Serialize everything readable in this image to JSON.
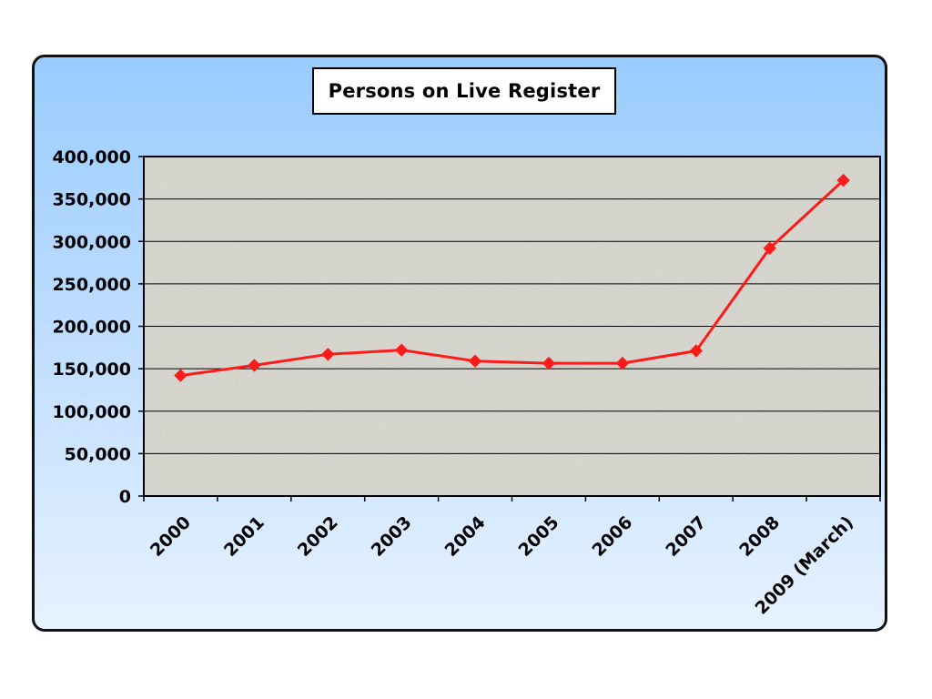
{
  "chart_data": {
    "type": "line",
    "title": "Persons on Live Register",
    "xlabel": "",
    "ylabel": "",
    "categories": [
      "2000",
      "2001",
      "2002",
      "2003",
      "2004",
      "2005",
      "2006",
      "2007",
      "2008",
      "2009 (March)"
    ],
    "series": [
      {
        "values": [
          142000,
          154000,
          167000,
          172000,
          159000,
          156500,
          156500,
          171000,
          292000,
          372000
        ]
      }
    ],
    "yticks": [
      "0",
      "50,000",
      "100,000",
      "150,000",
      "200,000",
      "250,000",
      "300,000",
      "350,000",
      "400,000"
    ],
    "ylim": [
      0,
      400000
    ],
    "grid": true,
    "legend": "none",
    "colors": {
      "line": "#ff1a1a",
      "marker": "#ff1a1a",
      "plot_background": "#dcdbd3",
      "gridline": "#000000",
      "frame_gradient_top": "#99ccff",
      "frame_gradient_bottom": "#e7f2ff"
    }
  }
}
